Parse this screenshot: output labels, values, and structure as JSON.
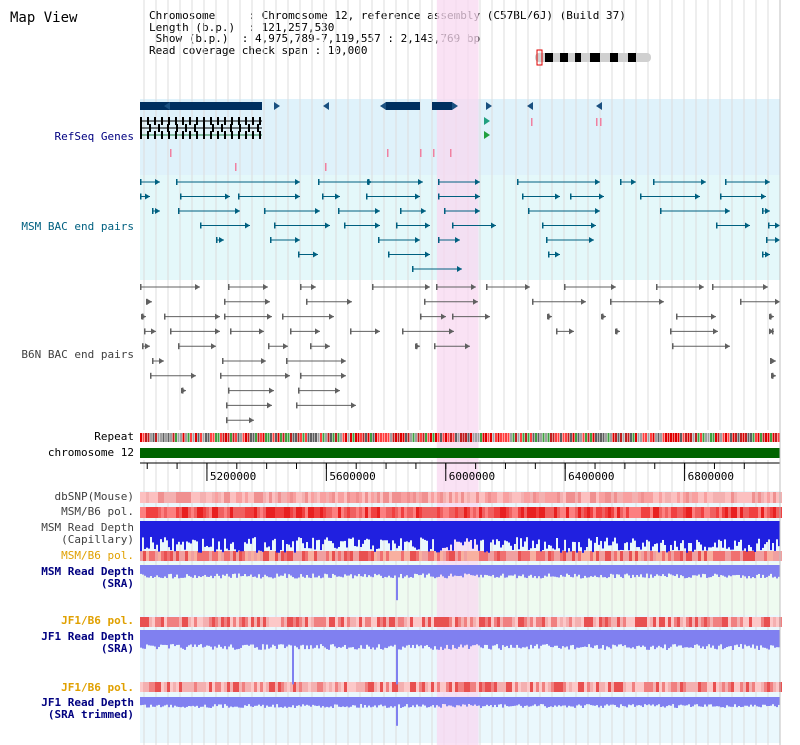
{
  "title": "Map View",
  "info": {
    "line1": "Chromosome     : Chromosome 12, reference assembly (C57BL/6J) (Build 37)",
    "line2": "Length (b.p.)  : 121,257,530",
    "line3": " Show (b.p.)  : 4,975,789-7,119,557 : 2,143,769 bp",
    "line4": "Read coverage check span : 10,000"
  },
  "tracks": {
    "refseq": "RefSeq Genes",
    "msm_bac": "MSM BAC end pairs",
    "b6n_bac": "B6N BAC end pairs",
    "repeat": "Repeat",
    "chrom": "chromosome 12",
    "dbsnp": "dbSNP(Mouse)",
    "msm_pol": "MSM/B6 pol.",
    "msm_cap1": "MSM Read Depth",
    "msm_cap2": "(Capillary)",
    "msm_pol2": "MSM/B6 pol.",
    "msm_sra1": "MSM Read Depth",
    "msm_sra2": "(SRA)",
    "jf1_pol": "JF1/B6 pol.",
    "jf1_sra1": "JF1 Read Depth",
    "jf1_sra2": "(SRA)",
    "jf1_pol2": "JF1/B6 pol.",
    "jf1_trim1": "JF1 Read Depth",
    "jf1_trim2": "(SRA trimmed)"
  },
  "axis": {
    "ticks": [
      "5200000",
      "5600000",
      "6000000",
      "6400000",
      "6800000"
    ],
    "tick_values": [
      5200000,
      5600000,
      6000000,
      6400000,
      6800000
    ],
    "start": 4975789,
    "end": 7119557
  },
  "highlight_region": [
    5970000,
    6110000
  ],
  "colors": {
    "navy": "#000080",
    "teal": "#006080",
    "orange": "#e0a000",
    "gene": "#003060",
    "chrom": "#006400",
    "highlight": "#f8d8f0",
    "coverage_blue": "#2020e0",
    "coverage_lavender": "#8080f0"
  }
}
